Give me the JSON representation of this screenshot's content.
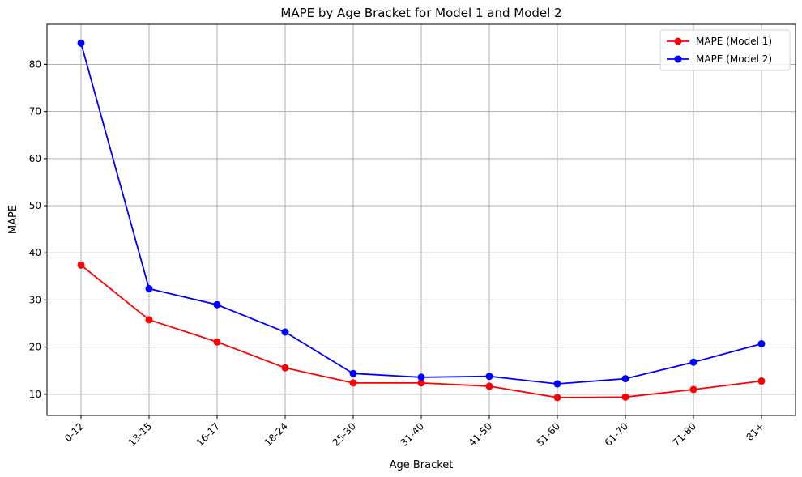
{
  "chart_data": {
    "type": "line",
    "title": "MAPE by Age Bracket for Model 1 and Model 2",
    "xlabel": "Age Bracket",
    "ylabel": "MAPE",
    "categories": [
      "0-12",
      "13-15",
      "16-17",
      "18-24",
      "25-30",
      "31-40",
      "41-50",
      "51-60",
      "61-70",
      "71-80",
      "81+"
    ],
    "ylim": [
      5.5,
      88.5
    ],
    "yticks": [
      10,
      20,
      30,
      40,
      50,
      60,
      70,
      80
    ],
    "grid": true,
    "legend_position": "top-right",
    "series": [
      {
        "name": "MAPE (Model 1)",
        "color": "#ff0000",
        "marker": "circle",
        "values": [
          37.4,
          25.8,
          21.1,
          15.6,
          12.4,
          12.4,
          11.7,
          9.3,
          9.4,
          11.0,
          12.8
        ]
      },
      {
        "name": "MAPE (Model 2)",
        "color": "#0000ff",
        "marker": "circle",
        "values": [
          84.5,
          32.4,
          29.0,
          23.2,
          14.4,
          13.6,
          13.8,
          12.2,
          13.3,
          16.8,
          20.7
        ]
      }
    ]
  }
}
